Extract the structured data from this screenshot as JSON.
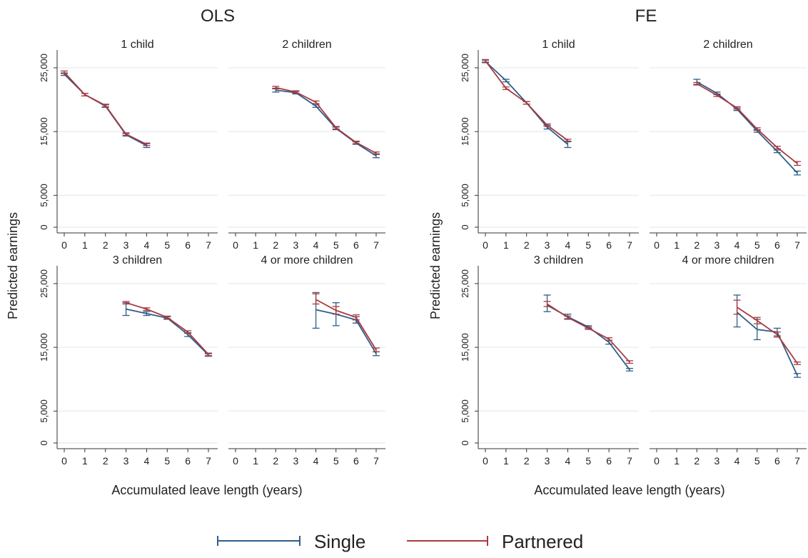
{
  "panels": {
    "left_title": "OLS",
    "right_title": "FE",
    "y_label": "Predicted earnings",
    "x_label": "Accumulated leave length (years)"
  },
  "legend": {
    "single": "Single",
    "partnered": "Partnered"
  },
  "colors": {
    "single": "#2e5d8a",
    "partnered": "#a93a3f",
    "grid": "#e8eef2"
  },
  "chart_data": {
    "type": "line",
    "subplots": [
      "1 child",
      "2 children",
      "3 children",
      "4 or more children"
    ],
    "x_ticks": [
      0,
      1,
      2,
      3,
      4,
      5,
      6,
      7
    ],
    "x_tick_labels": [
      "0",
      "1",
      "2",
      "3",
      "4",
      "5",
      "6",
      "7"
    ],
    "y_ticks": [
      0,
      5000,
      15000,
      25000
    ],
    "y_tick_labels": [
      "0",
      "5,000",
      "15,000",
      "25,000"
    ],
    "xlim": [
      0,
      7
    ],
    "ylim": [
      0,
      26000
    ],
    "legend_position": "bottom",
    "grid": true,
    "models": [
      {
        "title": "OLS",
        "panels": [
          {
            "title": "1 child",
            "series": [
              {
                "name": "Single",
                "x": [
                  0,
                  1,
                  2,
                  3,
                  4
                ],
                "y": [
                  24000,
                  20800,
                  19000,
                  14500,
                  12800
                ],
                "lo": [
                  23800,
                  20600,
                  18800,
                  14300,
                  12500
                ],
                "hi": [
                  24200,
                  21000,
                  19200,
                  14700,
                  13100
                ]
              },
              {
                "name": "Partnered",
                "x": [
                  0,
                  1,
                  2,
                  3,
                  4
                ],
                "y": [
                  24300,
                  20800,
                  19100,
                  14600,
                  13000
                ],
                "lo": [
                  24100,
                  20600,
                  18900,
                  14400,
                  12800
                ],
                "hi": [
                  24500,
                  21000,
                  19300,
                  14800,
                  13200
                ]
              }
            ]
          },
          {
            "title": "2 children",
            "series": [
              {
                "name": "Single",
                "x": [
                  2,
                  3,
                  4,
                  5,
                  6,
                  7
                ],
                "y": [
                  21500,
                  21100,
                  19000,
                  15500,
                  13200,
                  11200
                ],
                "lo": [
                  21200,
                  20900,
                  18800,
                  15300,
                  13000,
                  10900
                ],
                "hi": [
                  21800,
                  21300,
                  19200,
                  15700,
                  13400,
                  11500
                ]
              },
              {
                "name": "Partnered",
                "x": [
                  2,
                  3,
                  4,
                  5,
                  6,
                  7
                ],
                "y": [
                  21900,
                  21200,
                  19600,
                  15600,
                  13300,
                  11600
                ],
                "lo": [
                  21700,
                  21000,
                  19400,
                  15400,
                  13100,
                  11400
                ],
                "hi": [
                  22100,
                  21400,
                  19800,
                  15800,
                  13500,
                  11800
                ]
              }
            ]
          },
          {
            "title": "3 children",
            "series": [
              {
                "name": "Single",
                "x": [
                  3,
                  4,
                  5,
                  6,
                  7
                ],
                "y": [
                  21000,
                  20300,
                  19600,
                  17000,
                  13800
                ],
                "lo": [
                  20000,
                  20000,
                  19400,
                  16700,
                  13600
                ],
                "hi": [
                  22000,
                  20600,
                  19800,
                  17300,
                  14000
                ]
              },
              {
                "name": "Partnered",
                "x": [
                  3,
                  4,
                  5,
                  6,
                  7
                ],
                "y": [
                  22000,
                  21000,
                  19700,
                  17400,
                  13900
                ],
                "lo": [
                  21800,
                  20800,
                  19500,
                  17200,
                  13700
                ],
                "hi": [
                  22200,
                  21200,
                  19900,
                  17600,
                  14100
                ]
              }
            ]
          },
          {
            "title": "4 or more children",
            "series": [
              {
                "name": "Single",
                "x": [
                  4,
                  5,
                  6,
                  7
                ],
                "y": [
                  20900,
                  20200,
                  19300,
                  14000
                ],
                "lo": [
                  18000,
                  18400,
                  18800,
                  13700
                ],
                "hi": [
                  23400,
                  22000,
                  19800,
                  14300
                ]
              },
              {
                "name": "Partnered",
                "x": [
                  4,
                  5,
                  6,
                  7
                ],
                "y": [
                  22500,
                  20800,
                  19700,
                  14600
                ],
                "lo": [
                  21800,
                  20200,
                  19300,
                  14300
                ],
                "hi": [
                  23600,
                  21400,
                  20100,
                  14900
                ]
              }
            ]
          }
        ]
      },
      {
        "title": "FE",
        "panels": [
          {
            "title": "1 child",
            "series": [
              {
                "name": "Single",
                "x": [
                  0,
                  1,
                  2,
                  3,
                  4
                ],
                "y": [
                  26000,
                  23000,
                  19500,
                  15700,
                  13000
                ],
                "lo": [
                  25800,
                  22800,
                  19300,
                  15400,
                  12500
                ],
                "hi": [
                  26200,
                  23200,
                  19700,
                  16000,
                  13500
                ]
              },
              {
                "name": "Partnered",
                "x": [
                  0,
                  1,
                  2,
                  3,
                  4
                ],
                "y": [
                  26100,
                  21800,
                  19500,
                  16000,
                  13600
                ],
                "lo": [
                  25900,
                  21600,
                  19300,
                  15800,
                  13400
                ],
                "hi": [
                  26300,
                  22000,
                  19700,
                  16200,
                  13800
                ]
              }
            ]
          },
          {
            "title": "2 children",
            "series": [
              {
                "name": "Single",
                "x": [
                  2,
                  3,
                  4,
                  5,
                  6,
                  7
                ],
                "y": [
                  22800,
                  21000,
                  18500,
                  15100,
                  11900,
                  8500
                ],
                "lo": [
                  22400,
                  20800,
                  18300,
                  14900,
                  11700,
                  8200
                ],
                "hi": [
                  23200,
                  21200,
                  18700,
                  15300,
                  12100,
                  8800
                ]
              },
              {
                "name": "Partnered",
                "x": [
                  2,
                  3,
                  4,
                  5,
                  6,
                  7
                ],
                "y": [
                  22500,
                  20700,
                  18700,
                  15400,
                  12500,
                  10000
                ],
                "lo": [
                  22300,
                  20500,
                  18500,
                  15200,
                  12300,
                  9700
                ],
                "hi": [
                  22700,
                  20900,
                  18900,
                  15600,
                  12700,
                  10300
                ]
              }
            ]
          },
          {
            "title": "3 children",
            "series": [
              {
                "name": "Single",
                "x": [
                  3,
                  4,
                  5,
                  6,
                  7
                ],
                "y": [
                  21600,
                  19800,
                  18200,
                  15800,
                  11500
                ],
                "lo": [
                  20600,
                  19400,
                  18000,
                  15500,
                  11300
                ],
                "hi": [
                  23200,
                  20200,
                  18400,
                  16100,
                  11700
                ]
              },
              {
                "name": "Partnered",
                "x": [
                  3,
                  4,
                  5,
                  6,
                  7
                ],
                "y": [
                  21800,
                  19700,
                  18000,
                  16300,
                  12700
                ],
                "lo": [
                  21400,
                  19500,
                  17800,
                  16100,
                  12500
                ],
                "hi": [
                  22200,
                  19900,
                  18200,
                  16500,
                  12900
                ]
              }
            ]
          },
          {
            "title": "4 or more children",
            "series": [
              {
                "name": "Single",
                "x": [
                  4,
                  5,
                  6,
                  7
                ],
                "y": [
                  20500,
                  17800,
                  17400,
                  10600
                ],
                "lo": [
                  18200,
                  16200,
                  16800,
                  10300
                ],
                "hi": [
                  23200,
                  19400,
                  18000,
                  10900
                ]
              },
              {
                "name": "Partnered",
                "x": [
                  4,
                  5,
                  6,
                  7
                ],
                "y": [
                  21300,
                  19200,
                  17000,
                  12500
                ],
                "lo": [
                  20200,
                  18700,
                  16600,
                  12300
                ],
                "hi": [
                  22400,
                  19700,
                  17400,
                  12700
                ]
              }
            ]
          }
        ]
      }
    ]
  }
}
